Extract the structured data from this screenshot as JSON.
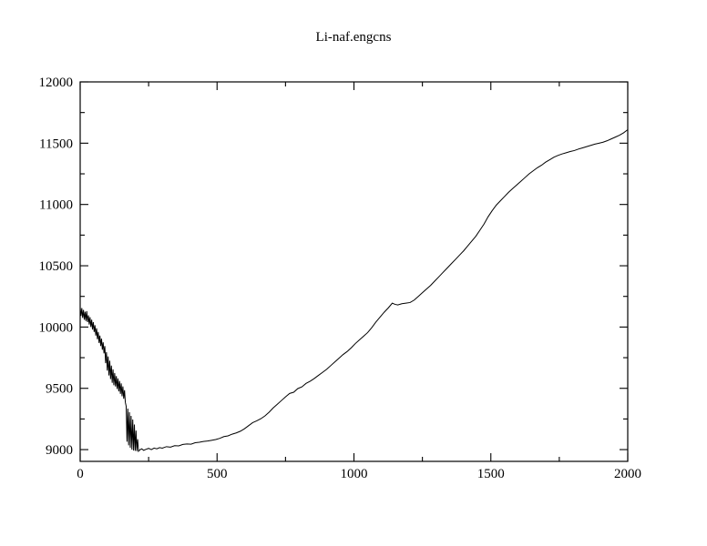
{
  "title": "Li-naf.engcns",
  "colors": {
    "background": "#ffffff",
    "line": "#000000",
    "frame": "#000000",
    "text": "#000000"
  },
  "chart_data": {
    "type": "line",
    "title": "Li-naf.engcns",
    "xlabel": "",
    "ylabel": "",
    "grid": false,
    "legend": "none",
    "xlim": [
      0,
      2000
    ],
    "ylim": [
      8904,
      12000
    ],
    "x_ticks_major": [
      0,
      500,
      1000,
      1500,
      2000
    ],
    "x_ticks_minor": [
      250,
      750,
      1250,
      1750
    ],
    "y_ticks_major": [
      9000,
      9500,
      10000,
      10500,
      11000,
      11500,
      12000
    ],
    "y_ticks_minor": [
      9250,
      9750,
      10250,
      10750,
      11250,
      11750
    ],
    "series": [
      {
        "name": "Li-naf.engcns",
        "color": "#000000",
        "points": [
          [
            0,
            10160
          ],
          [
            3,
            10090
          ],
          [
            6,
            10155
          ],
          [
            9,
            10075
          ],
          [
            12,
            10140
          ],
          [
            15,
            10060
          ],
          [
            18,
            10125
          ],
          [
            21,
            10050
          ],
          [
            24,
            10130
          ],
          [
            27,
            10040
          ],
          [
            30,
            10095
          ],
          [
            33,
            10020
          ],
          [
            36,
            10080
          ],
          [
            39,
            10000
          ],
          [
            42,
            10060
          ],
          [
            45,
            9980
          ],
          [
            48,
            10040
          ],
          [
            51,
            9960
          ],
          [
            54,
            10015
          ],
          [
            57,
            9930
          ],
          [
            60,
            9990
          ],
          [
            63,
            9900
          ],
          [
            66,
            9960
          ],
          [
            69,
            9870
          ],
          [
            72,
            9930
          ],
          [
            75,
            9845
          ],
          [
            78,
            9905
          ],
          [
            81,
            9815
          ],
          [
            84,
            9875
          ],
          [
            87,
            9785
          ],
          [
            90,
            9845
          ],
          [
            93,
            9705
          ],
          [
            96,
            9795
          ],
          [
            99,
            9645
          ],
          [
            102,
            9760
          ],
          [
            105,
            9605
          ],
          [
            108,
            9725
          ],
          [
            111,
            9575
          ],
          [
            114,
            9685
          ],
          [
            117,
            9545
          ],
          [
            120,
            9655
          ],
          [
            123,
            9525
          ],
          [
            126,
            9625
          ],
          [
            129,
            9515
          ],
          [
            132,
            9600
          ],
          [
            135,
            9495
          ],
          [
            138,
            9580
          ],
          [
            141,
            9475
          ],
          [
            144,
            9560
          ],
          [
            147,
            9455
          ],
          [
            150,
            9540
          ],
          [
            153,
            9435
          ],
          [
            156,
            9515
          ],
          [
            159,
            9415
          ],
          [
            162,
            9485
          ],
          [
            165,
            9385
          ],
          [
            168,
            9355
          ],
          [
            171,
            9065
          ],
          [
            174,
            9335
          ],
          [
            177,
            9035
          ],
          [
            180,
            9305
          ],
          [
            183,
            9015
          ],
          [
            186,
            9275
          ],
          [
            189,
            9000
          ],
          [
            192,
            9245
          ],
          [
            195,
            8992
          ],
          [
            198,
            9205
          ],
          [
            201,
            8990
          ],
          [
            204,
            9155
          ],
          [
            207,
            8988
          ],
          [
            210,
            9085
          ],
          [
            213,
            8986
          ],
          [
            218,
            8998
          ],
          [
            225,
            9006
          ],
          [
            232,
            8994
          ],
          [
            240,
            9002
          ],
          [
            250,
            9010
          ],
          [
            260,
            9000
          ],
          [
            270,
            9012
          ],
          [
            280,
            9006
          ],
          [
            290,
            9016
          ],
          [
            300,
            9012
          ],
          [
            315,
            9024
          ],
          [
            330,
            9020
          ],
          [
            345,
            9032
          ],
          [
            360,
            9030
          ],
          [
            375,
            9042
          ],
          [
            390,
            9046
          ],
          [
            405,
            9044
          ],
          [
            420,
            9056
          ],
          [
            435,
            9060
          ],
          [
            450,
            9066
          ],
          [
            465,
            9070
          ],
          [
            480,
            9076
          ],
          [
            495,
            9082
          ],
          [
            510,
            9092
          ],
          [
            525,
            9106
          ],
          [
            540,
            9112
          ],
          [
            555,
            9126
          ],
          [
            570,
            9136
          ],
          [
            585,
            9150
          ],
          [
            600,
            9170
          ],
          [
            615,
            9195
          ],
          [
            630,
            9220
          ],
          [
            645,
            9235
          ],
          [
            660,
            9252
          ],
          [
            675,
            9275
          ],
          [
            690,
            9305
          ],
          [
            705,
            9340
          ],
          [
            720,
            9370
          ],
          [
            735,
            9400
          ],
          [
            750,
            9430
          ],
          [
            765,
            9458
          ],
          [
            780,
            9468
          ],
          [
            795,
            9498
          ],
          [
            810,
            9512
          ],
          [
            825,
            9540
          ],
          [
            840,
            9558
          ],
          [
            855,
            9580
          ],
          [
            870,
            9605
          ],
          [
            885,
            9630
          ],
          [
            900,
            9655
          ],
          [
            915,
            9685
          ],
          [
            930,
            9715
          ],
          [
            945,
            9745
          ],
          [
            960,
            9775
          ],
          [
            975,
            9800
          ],
          [
            990,
            9830
          ],
          [
            1005,
            9865
          ],
          [
            1020,
            9895
          ],
          [
            1035,
            9925
          ],
          [
            1050,
            9955
          ],
          [
            1065,
            9995
          ],
          [
            1080,
            10040
          ],
          [
            1095,
            10080
          ],
          [
            1110,
            10120
          ],
          [
            1125,
            10155
          ],
          [
            1140,
            10195
          ],
          [
            1150,
            10185
          ],
          [
            1160,
            10180
          ],
          [
            1175,
            10190
          ],
          [
            1190,
            10195
          ],
          [
            1205,
            10200
          ],
          [
            1220,
            10220
          ],
          [
            1235,
            10250
          ],
          [
            1250,
            10280
          ],
          [
            1265,
            10310
          ],
          [
            1280,
            10340
          ],
          [
            1295,
            10375
          ],
          [
            1310,
            10410
          ],
          [
            1325,
            10445
          ],
          [
            1340,
            10480
          ],
          [
            1355,
            10515
          ],
          [
            1370,
            10550
          ],
          [
            1385,
            10585
          ],
          [
            1400,
            10620
          ],
          [
            1415,
            10660
          ],
          [
            1430,
            10700
          ],
          [
            1445,
            10740
          ],
          [
            1460,
            10790
          ],
          [
            1475,
            10840
          ],
          [
            1490,
            10900
          ],
          [
            1505,
            10950
          ],
          [
            1520,
            10995
          ],
          [
            1535,
            11030
          ],
          [
            1550,
            11065
          ],
          [
            1565,
            11100
          ],
          [
            1580,
            11130
          ],
          [
            1595,
            11160
          ],
          [
            1610,
            11190
          ],
          [
            1625,
            11220
          ],
          [
            1640,
            11250
          ],
          [
            1655,
            11275
          ],
          [
            1670,
            11300
          ],
          [
            1685,
            11320
          ],
          [
            1700,
            11345
          ],
          [
            1715,
            11365
          ],
          [
            1730,
            11385
          ],
          [
            1745,
            11400
          ],
          [
            1760,
            11412
          ],
          [
            1775,
            11422
          ],
          [
            1790,
            11432
          ],
          [
            1805,
            11440
          ],
          [
            1820,
            11452
          ],
          [
            1835,
            11462
          ],
          [
            1850,
            11472
          ],
          [
            1865,
            11482
          ],
          [
            1880,
            11492
          ],
          [
            1895,
            11500
          ],
          [
            1910,
            11508
          ],
          [
            1925,
            11520
          ],
          [
            1940,
            11535
          ],
          [
            1955,
            11550
          ],
          [
            1970,
            11565
          ],
          [
            1985,
            11585
          ],
          [
            2000,
            11610
          ]
        ]
      }
    ]
  }
}
